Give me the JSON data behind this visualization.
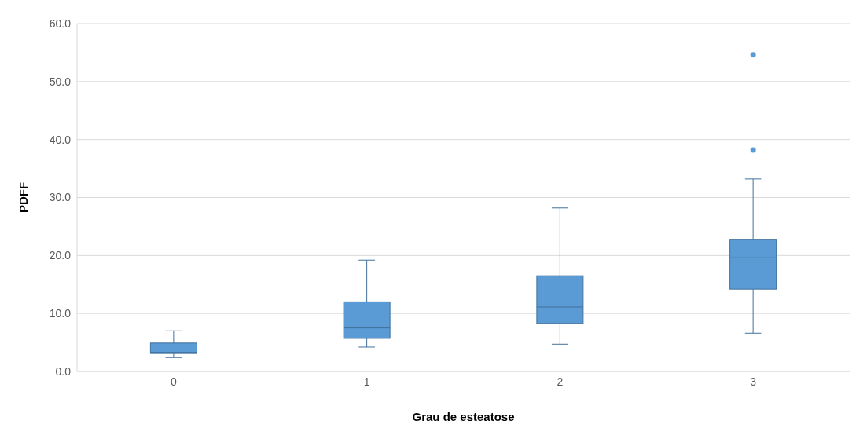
{
  "chart_data": {
    "type": "box",
    "xlabel": "Grau de esteatose",
    "ylabel": "PDFF",
    "categories": [
      "0",
      "1",
      "2",
      "3"
    ],
    "color": "#5b9bd5",
    "boxes": [
      {
        "low": 2.4,
        "q1": 3.1,
        "median": 3.3,
        "q3": 4.9,
        "high": 7.0
      },
      {
        "low": 4.2,
        "q1": 5.7,
        "median": 7.5,
        "q3": 12.0,
        "high": 19.2
      },
      {
        "low": 4.7,
        "q1": 8.3,
        "median": 11.1,
        "q3": 16.5,
        "high": 28.2
      },
      {
        "low": 6.6,
        "q1": 14.2,
        "median": 19.6,
        "q3": 22.8,
        "high": 33.2,
        "outliers": [
          54.6,
          38.2
        ]
      }
    ],
    "ylim": [
      0,
      60
    ],
    "yticks": [
      {
        "value": 0,
        "label": "0.0"
      },
      {
        "value": 10,
        "label": "10.0"
      },
      {
        "value": 20,
        "label": "20.0"
      },
      {
        "value": 30,
        "label": "30.0"
      },
      {
        "value": 40,
        "label": "40.0"
      },
      {
        "value": 50,
        "label": "50.0"
      },
      {
        "value": 60,
        "label": "60.0"
      }
    ],
    "grid": "y"
  }
}
